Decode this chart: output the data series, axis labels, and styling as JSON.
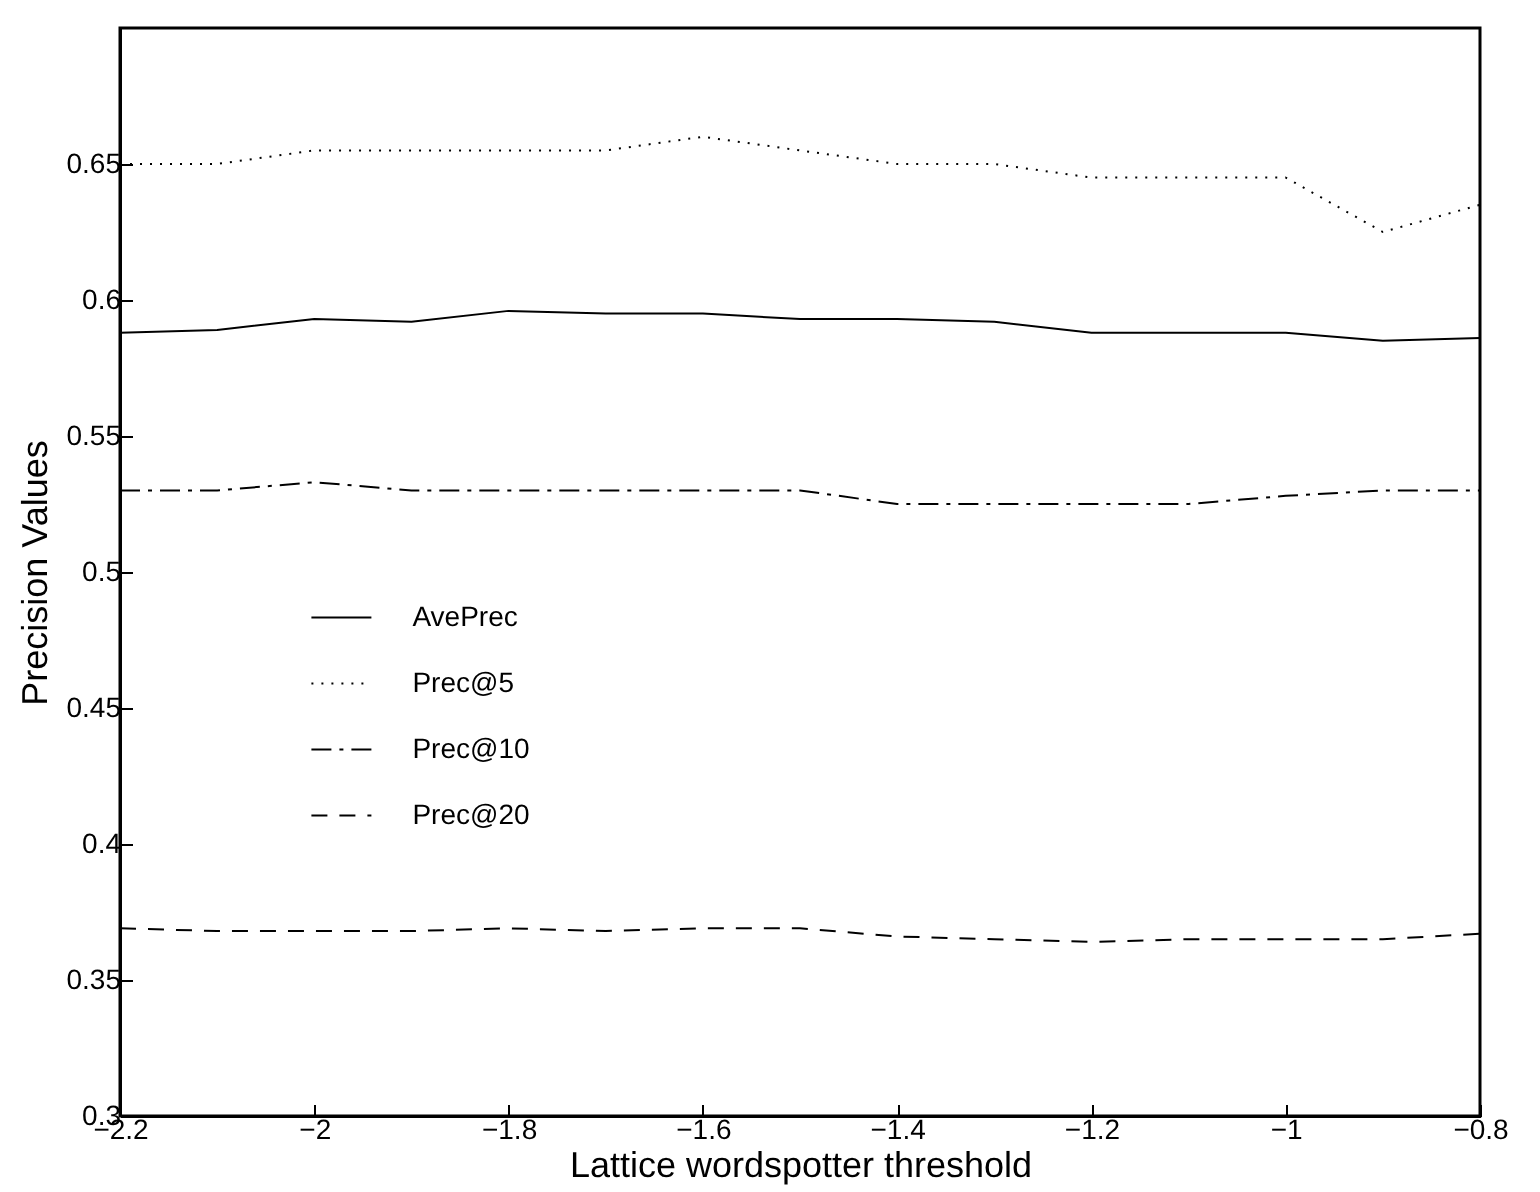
{
  "chart_data": {
    "type": "line",
    "xlabel": "Lattice wordspotter threshold",
    "ylabel": "Precision Values",
    "x": [
      -2.2,
      -2.1,
      -2.0,
      -1.9,
      -1.8,
      -1.7,
      -1.6,
      -1.5,
      -1.4,
      -1.3,
      -1.2,
      -1.1,
      -1.0,
      -0.9,
      -0.8
    ],
    "series": [
      {
        "name": "AvePrec",
        "color": "#000000",
        "line_style": "solid",
        "values": [
          0.588,
          0.589,
          0.593,
          0.592,
          0.596,
          0.595,
          0.595,
          0.593,
          0.593,
          0.592,
          0.588,
          0.588,
          0.588,
          0.585,
          0.586
        ]
      },
      {
        "name": "Prec@5",
        "color": "#000000",
        "line_style": "dotted",
        "values": [
          0.65,
          0.65,
          0.655,
          0.655,
          0.655,
          0.655,
          0.66,
          0.655,
          0.65,
          0.65,
          0.645,
          0.645,
          0.645,
          0.625,
          0.635
        ]
      },
      {
        "name": "Prec@10",
        "color": "#000000",
        "line_style": "dashdot",
        "values": [
          0.53,
          0.53,
          0.533,
          0.53,
          0.53,
          0.53,
          0.53,
          0.53,
          0.525,
          0.525,
          0.525,
          0.525,
          0.528,
          0.53,
          0.53
        ]
      },
      {
        "name": "Prec@20",
        "color": "#000000",
        "line_style": "dashed",
        "values": [
          0.369,
          0.368,
          0.368,
          0.368,
          0.369,
          0.368,
          0.369,
          0.369,
          0.366,
          0.365,
          0.364,
          0.365,
          0.365,
          0.365,
          0.367
        ]
      }
    ],
    "xlim": [
      -2.2,
      -0.8
    ],
    "xticks": [
      -2.2,
      -2,
      -1.8,
      -1.6,
      -1.4,
      -1.2,
      -1,
      -0.8
    ],
    "ylim": [
      0.3,
      0.7
    ],
    "yticks": [
      0.3,
      0.35,
      0.4,
      0.45,
      0.5,
      0.55,
      0.6,
      0.65
    ],
    "grid": false,
    "legend": "left",
    "marker": "none"
  }
}
